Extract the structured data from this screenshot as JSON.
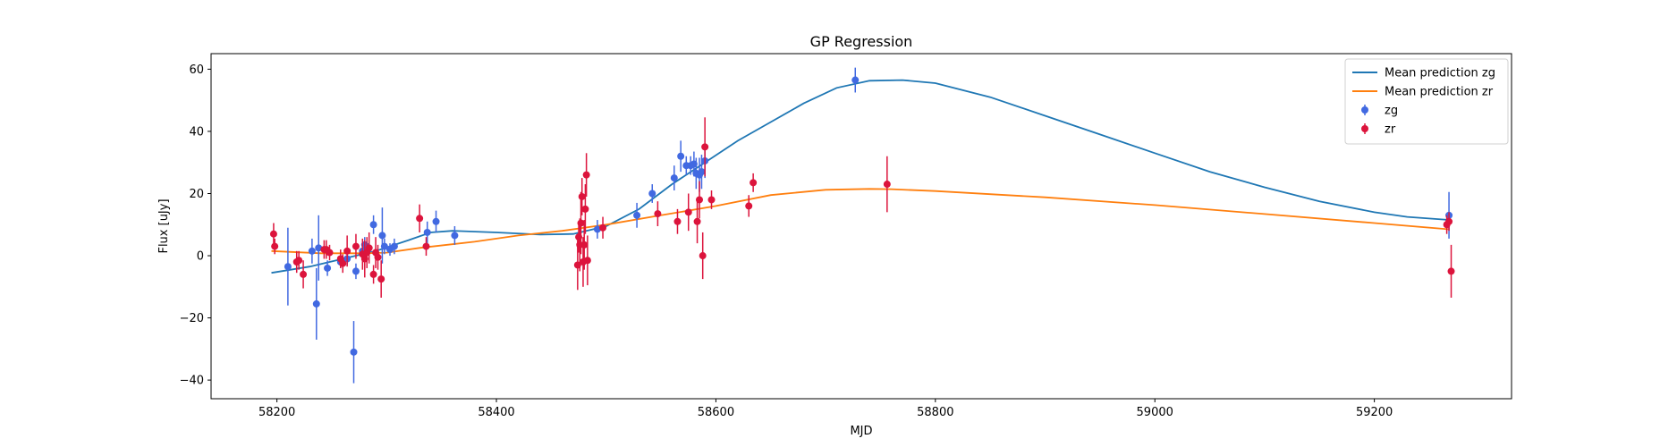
{
  "chart_data": {
    "type": "scatter",
    "title": "GP Regression",
    "xlabel": "MJD",
    "ylabel": "Flux [uJy]",
    "xlim": [
      58140,
      59325
    ],
    "ylim": [
      -46,
      65
    ],
    "xticks": [
      58200,
      58400,
      58600,
      58800,
      59000,
      59200
    ],
    "yticks": [
      -40,
      -20,
      0,
      20,
      40,
      60
    ],
    "grid": false,
    "legend_position": "top-right",
    "series": [
      {
        "name": "Mean prediction zg",
        "kind": "line",
        "color": "#1f77b4",
        "x": [
          58195,
          58230,
          58260,
          58290,
          58320,
          58340,
          58360,
          58400,
          58440,
          58470,
          58500,
          58530,
          58560,
          58590,
          58620,
          58650,
          58680,
          58710,
          58740,
          58770,
          58800,
          58850,
          58900,
          58950,
          59000,
          59050,
          59100,
          59150,
          59200,
          59230,
          59268
        ],
        "y": [
          -5.5,
          -3.5,
          -1,
          1.5,
          5,
          7.5,
          8,
          7.5,
          6.8,
          7,
          9.5,
          15,
          23,
          30,
          37,
          43,
          49,
          54,
          56.3,
          56.5,
          55.5,
          51,
          45,
          39,
          33,
          27,
          22,
          17.5,
          14,
          12.5,
          11.5
        ]
      },
      {
        "name": "Mean prediction zr",
        "kind": "line",
        "color": "#ff7f0e",
        "x": [
          58195,
          58240,
          58280,
          58300,
          58330,
          58380,
          58420,
          58460,
          58500,
          58550,
          58600,
          58650,
          58700,
          58740,
          58760,
          58800,
          58900,
          59000,
          59100,
          59200,
          59268
        ],
        "y": [
          1.5,
          0.8,
          0.8,
          1,
          2.5,
          4.5,
          6.5,
          8,
          10,
          13,
          16,
          19.5,
          21.2,
          21.5,
          21.4,
          20.8,
          18.8,
          16.3,
          13.4,
          10.5,
          8.5
        ]
      },
      {
        "name": "zg",
        "kind": "errorbar",
        "color": "#4169e1",
        "x": [
          58210,
          58232,
          58236,
          58238,
          58246,
          58258,
          58264,
          58270,
          58272,
          58278,
          58280,
          58283,
          58288,
          58296,
          58298,
          58303,
          58307,
          58337,
          58345,
          58362,
          58492,
          58528,
          58542,
          58562,
          58568,
          58573,
          58577,
          58580,
          58582,
          58585,
          58587,
          58590,
          58727,
          59268
        ],
        "y": [
          -3.5,
          1.5,
          -15.5,
          2.5,
          -4,
          -2,
          -1,
          -31,
          -5,
          1.5,
          3.5,
          2,
          10,
          6.5,
          3,
          2,
          3,
          7.5,
          11,
          6.5,
          8.5,
          13,
          20,
          25,
          32,
          29,
          29,
          29.5,
          26.5,
          26,
          27,
          30.5,
          56.5,
          13
        ],
        "err": [
          12.5,
          4,
          11.5,
          10.5,
          2.5,
          2,
          2,
          10,
          2.5,
          2,
          2.5,
          2,
          3,
          9,
          2.5,
          2,
          2.5,
          3.5,
          3.5,
          3,
          3,
          4,
          3,
          4,
          5,
          3,
          3,
          4,
          5,
          5.5,
          5.5,
          5.5,
          4,
          7.5
        ]
      },
      {
        "name": "zr",
        "kind": "errorbar",
        "color": "#dc143c",
        "x": [
          58197,
          58198,
          58218,
          58220,
          58224,
          58243,
          58245,
          58248,
          58258,
          58260,
          58264,
          58272,
          58278,
          58280,
          58282,
          58284,
          58288,
          58290,
          58292,
          58295,
          58330,
          58336,
          58474,
          58475,
          58476,
          58477,
          58478,
          58479,
          58480,
          58481,
          58482,
          58483,
          58497,
          58547,
          58565,
          58575,
          58583,
          58585,
          58588,
          58590,
          58596,
          58630,
          58634,
          58756,
          59266,
          59268,
          59270
        ],
        "y": [
          7,
          3,
          -2,
          -1.5,
          -6,
          2,
          2,
          1,
          -1,
          -2.5,
          1.5,
          3,
          0.5,
          -1,
          1,
          2.5,
          -6,
          1,
          -0.5,
          -7.5,
          12,
          3,
          -3,
          6,
          3.5,
          10.5,
          19,
          -2,
          3.5,
          15,
          26,
          -1.5,
          9,
          13.5,
          11,
          14,
          11,
          18,
          0,
          35,
          18,
          16,
          23.5,
          23,
          10,
          11,
          -5
        ],
        "err": [
          3.5,
          2.5,
          3.5,
          3,
          4.5,
          3,
          3,
          2.5,
          3,
          3,
          5,
          4,
          5,
          6,
          5,
          5,
          3,
          5,
          4,
          6,
          4.5,
          3,
          8,
          5,
          8.5,
          10,
          6,
          8,
          8,
          8,
          7,
          8,
          3.5,
          4,
          4,
          6,
          7,
          6,
          7.5,
          9.5,
          3,
          3.5,
          3,
          9,
          3,
          3,
          8.5
        ]
      }
    ]
  }
}
